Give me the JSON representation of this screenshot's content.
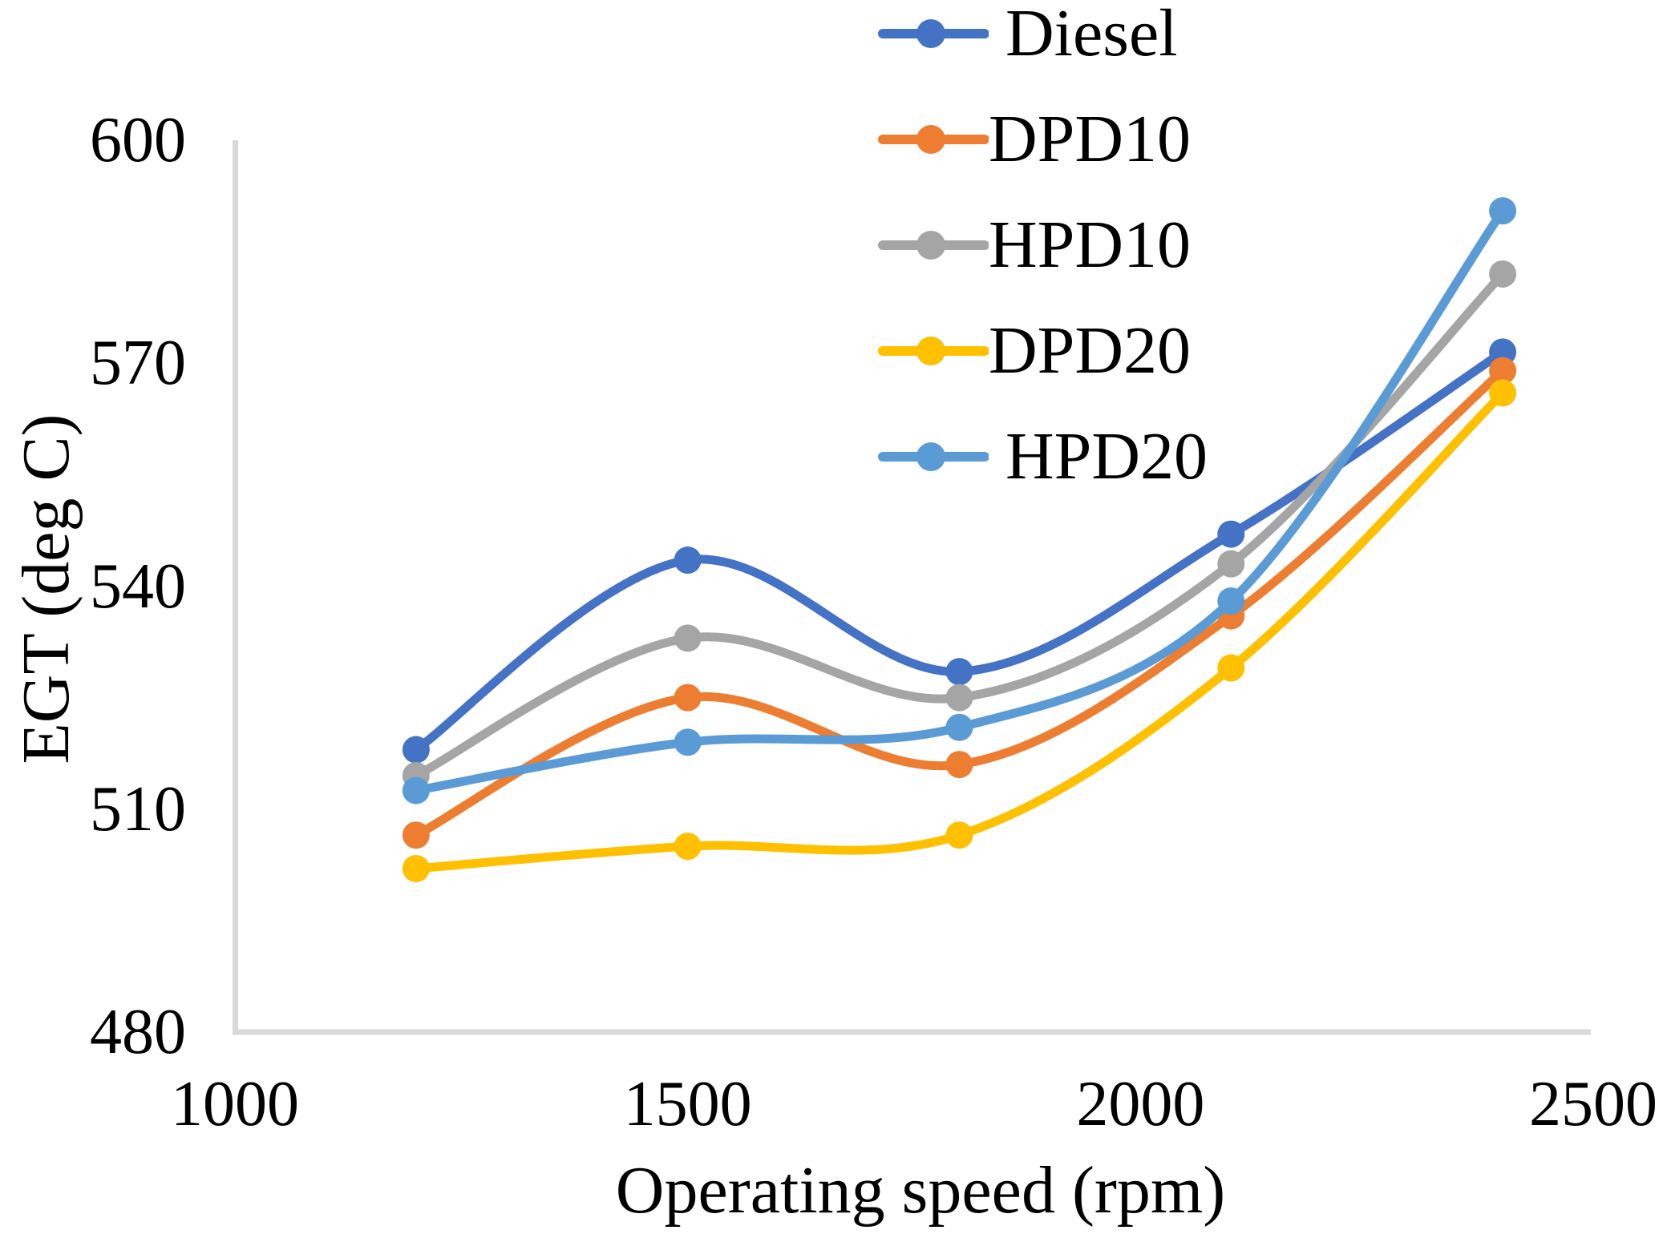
{
  "figure": {
    "background": "#FFFFFF",
    "text_color": "#000000",
    "axis_color": "#D9D9D9"
  },
  "chart_data": {
    "type": "line",
    "title": "",
    "xlabel": "Operating speed (rpm)",
    "ylabel": "EGT (deg C)",
    "x": [
      1200,
      1500,
      1800,
      2100,
      2400
    ],
    "xlim": [
      1000,
      2500
    ],
    "ylim": [
      480,
      600
    ],
    "x_ticks": [
      1000,
      1500,
      2000,
      2500
    ],
    "y_ticks": [
      600,
      570,
      540,
      510,
      480
    ],
    "grid": false,
    "smooth": true,
    "marker": "circle",
    "legend_position": "top-right",
    "series": [
      {
        "name": "Diesel",
        "legend_label": " Diesel",
        "color": "#4472C4",
        "values": [
          518,
          543.5,
          528.5,
          547,
          571.5
        ]
      },
      {
        "name": "DPD10",
        "legend_label": "DPD10",
        "color": "#ED7D31",
        "values": [
          506.5,
          525,
          516,
          536,
          569
        ]
      },
      {
        "name": "HPD10",
        "legend_label": "HPD10",
        "color": "#A5A5A5",
        "values": [
          514.5,
          533,
          525,
          543,
          582
        ]
      },
      {
        "name": "DPD20",
        "legend_label": "DPD20",
        "color": "#FFC000",
        "values": [
          502,
          505,
          506.5,
          529,
          566
        ]
      },
      {
        "name": "HPD20",
        "legend_label": " HPD20",
        "color": "#5B9BD5",
        "values": [
          512.5,
          519,
          521,
          538,
          590.5
        ]
      }
    ]
  }
}
